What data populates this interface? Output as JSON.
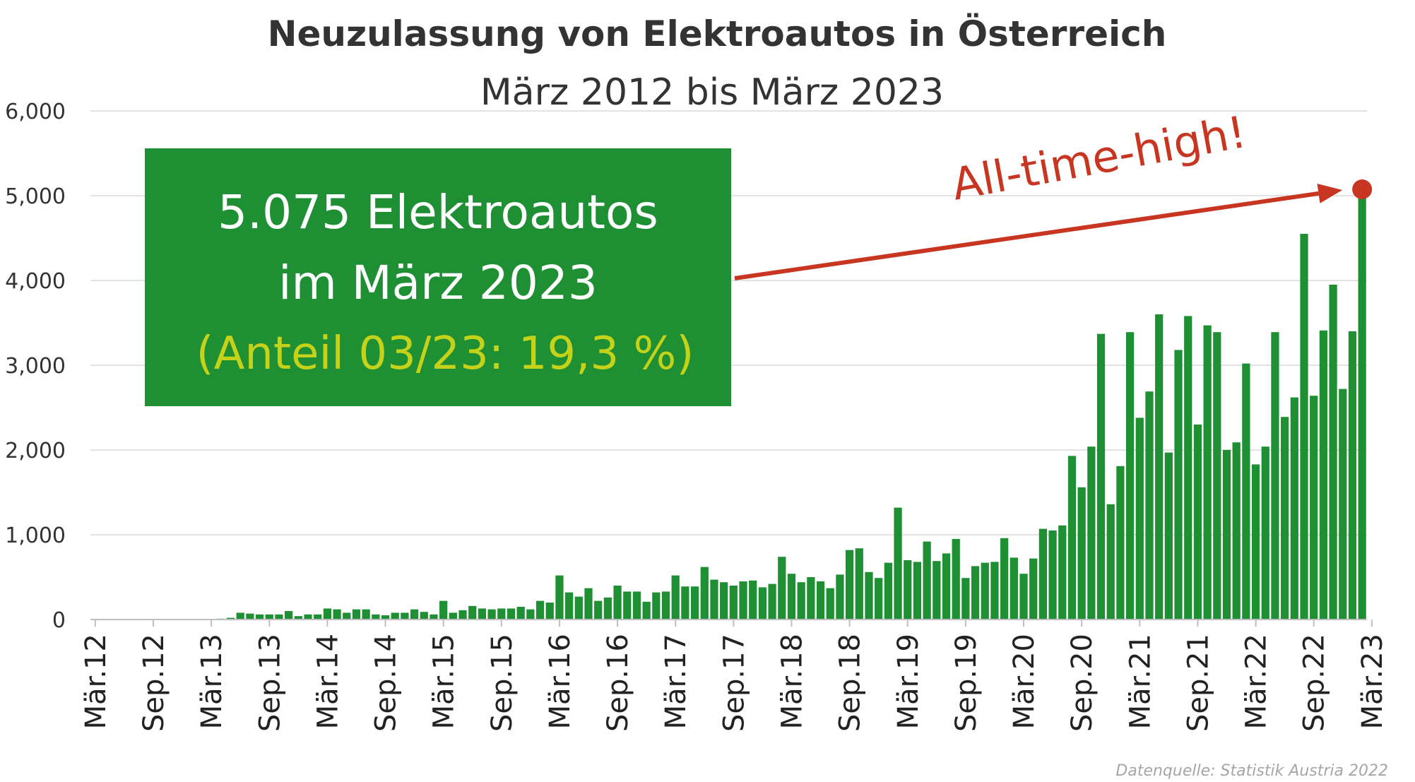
{
  "chart_data": {
    "type": "bar",
    "title": "Neuzulassung von Elektroautos in Österreich",
    "subtitle": "März 2012 bis März 2023",
    "xlabel": "",
    "ylabel": "",
    "ylim": [
      0,
      6000
    ],
    "yticks": [
      "0",
      "1,000",
      "2,000",
      "3,000",
      "4,000",
      "5,000",
      "6,000"
    ],
    "x_tick_labels": [
      "Mär.12",
      "Sep.12",
      "Mär.13",
      "Sep.13",
      "Mär.14",
      "Sep.14",
      "Mär.15",
      "Sep.15",
      "Mär.16",
      "Sep.16",
      "Mär.17",
      "Sep.17",
      "Mär.18",
      "Sep.18",
      "Mär.19",
      "Sep.19",
      "Mär.20",
      "Sep.20",
      "Mär.21",
      "Sep.21",
      "Mär.22",
      "Sep.22",
      "Mär.23"
    ],
    "grid": true,
    "bar_color": "#1e8f32",
    "values": [
      0,
      0,
      0,
      0,
      0,
      0,
      0,
      0,
      0,
      0,
      0,
      0,
      0,
      10,
      20,
      80,
      70,
      60,
      60,
      60,
      100,
      40,
      60,
      60,
      130,
      120,
      80,
      120,
      120,
      60,
      50,
      80,
      80,
      120,
      90,
      60,
      220,
      80,
      110,
      160,
      130,
      120,
      130,
      130,
      150,
      120,
      220,
      200,
      520,
      320,
      270,
      370,
      220,
      260,
      400,
      330,
      330,
      210,
      320,
      330,
      520,
      390,
      390,
      620,
      470,
      440,
      400,
      450,
      460,
      380,
      420,
      740,
      540,
      440,
      500,
      450,
      370,
      530,
      820,
      840,
      560,
      490,
      670,
      1320,
      700,
      680,
      920,
      690,
      780,
      950,
      490,
      630,
      670,
      680,
      960,
      730,
      540,
      720,
      1070,
      1050,
      1110,
      1930,
      1560,
      2040,
      3370,
      1360,
      1810,
      3390,
      2380,
      2690,
      3600,
      1970,
      3180,
      3580,
      2300,
      3470,
      3390,
      2000,
      2090,
      3020,
      1830,
      2040,
      3390,
      2390,
      2620,
      4550,
      2640,
      3410,
      3950,
      2720,
      3400,
      5075
    ],
    "annotations": [
      {
        "text_line1": "5.075 Elektroautos",
        "text_line2": "im März 2023",
        "text_line3": "(Anteil 03/23: 19,3 %)"
      },
      {
        "text": "All-time-high!"
      }
    ]
  },
  "colors": {
    "bar": "#1e8f32",
    "box_bg": "#1e8f32",
    "box_text": "#ffffff",
    "box_share_text": "#c5d21a",
    "highlight": "#c83520",
    "grid": "#d9d9d9"
  },
  "source": "Datenquelle: Statistik Austria 2022"
}
